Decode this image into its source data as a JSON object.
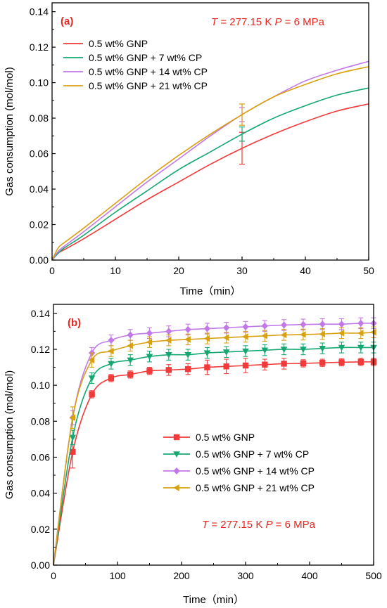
{
  "chart_data": [
    {
      "type": "line",
      "panel_label": "(a)",
      "condition": {
        "T_symbol": "T",
        "T_value": " = 277.15 K ",
        "P_symbol": "P",
        "P_value": " = 6 MPa"
      },
      "xlabel": "Time（min）",
      "ylabel": "Gas consumption (mol/mol)",
      "xlim": [
        0,
        50
      ],
      "ylim": [
        0,
        0.145
      ],
      "xticks": [
        "0",
        "10",
        "20",
        "30",
        "40",
        "50"
      ],
      "yticks": [
        "0.00",
        "0.02",
        "0.04",
        "0.06",
        "0.08",
        "0.10",
        "0.12",
        "0.14"
      ],
      "x": [
        0,
        1,
        2,
        5,
        10,
        15,
        20,
        25,
        30,
        35,
        40,
        45,
        50
      ],
      "series": [
        {
          "name": "0.5 wt% GNP",
          "color": "#f23a3a",
          "values": [
            0,
            0.004,
            0.006,
            0.012,
            0.023,
            0.034,
            0.044,
            0.054,
            0.063,
            0.071,
            0.078,
            0.084,
            0.088
          ],
          "error_bar": {
            "x": 30,
            "y": 0.063,
            "err": 0.009
          }
        },
        {
          "name": "0.5 wt% GNP + 7 wt% CP",
          "color": "#14a870",
          "values": [
            0,
            0.004,
            0.007,
            0.014,
            0.027,
            0.039,
            0.051,
            0.061,
            0.071,
            0.08,
            0.087,
            0.093,
            0.097
          ],
          "error_bar": {
            "x": 30,
            "y": 0.071,
            "err": 0.004
          }
        },
        {
          "name": "0.5 wt% GNP + 14 wt% CP",
          "color": "#c278e8",
          "values": [
            0,
            0.005,
            0.008,
            0.016,
            0.03,
            0.044,
            0.057,
            0.07,
            0.082,
            0.092,
            0.101,
            0.107,
            0.112
          ],
          "error_bar": {
            "x": 30,
            "y": 0.082,
            "err": 0.004
          }
        },
        {
          "name": "0.5 wt% GNP + 21 wt% CP",
          "color": "#d9a010",
          "values": [
            0,
            0.007,
            0.01,
            0.018,
            0.032,
            0.046,
            0.059,
            0.071,
            0.082,
            0.092,
            0.099,
            0.105,
            0.109
          ],
          "error_bar": {
            "x": 30,
            "y": 0.082,
            "err": 0.006
          }
        }
      ],
      "legend_position": "top-left"
    },
    {
      "type": "line",
      "panel_label": "(b)",
      "condition": {
        "T_symbol": "T",
        "T_value": " = 277.15 K ",
        "P_symbol": "P",
        "P_value": " = 6 MPa"
      },
      "xlabel": "Time（min）",
      "ylabel": "Gas consumption (mol/mol)",
      "xlim": [
        0,
        500
      ],
      "ylim": [
        0,
        0.145
      ],
      "xticks": [
        "0",
        "100",
        "200",
        "300",
        "400",
        "500"
      ],
      "yticks": [
        "0.00",
        "0.02",
        "0.04",
        "0.06",
        "0.08",
        "0.10",
        "0.12",
        "0.14"
      ],
      "x": [
        0,
        30,
        60,
        90,
        120,
        150,
        180,
        210,
        240,
        270,
        300,
        330,
        360,
        390,
        420,
        450,
        480,
        500
      ],
      "series": [
        {
          "name": "0.5 wt% GNP",
          "color": "#f23a3a",
          "marker": "square",
          "values": [
            0,
            0.063,
            0.095,
            0.104,
            0.106,
            0.108,
            0.1085,
            0.109,
            0.11,
            0.1105,
            0.111,
            0.1115,
            0.112,
            0.1122,
            0.1125,
            0.1128,
            0.113,
            0.113
          ],
          "errors": [
            0,
            0.009,
            0.002,
            0.002,
            0.002,
            0.002,
            0.003,
            0.003,
            0.004,
            0.004,
            0.004,
            0.003,
            0.003,
            0.002,
            0.002,
            0.002,
            0.002,
            0.002
          ]
        },
        {
          "name": "0.5 wt% GNP + 7 wt% CP",
          "color": "#14a870",
          "marker": "triangle-down",
          "values": [
            0,
            0.071,
            0.104,
            0.112,
            0.114,
            0.116,
            0.117,
            0.117,
            0.118,
            0.1185,
            0.119,
            0.1195,
            0.12,
            0.12,
            0.1205,
            0.121,
            0.121,
            0.121
          ],
          "errors": [
            0,
            0.004,
            0.003,
            0.003,
            0.003,
            0.003,
            0.003,
            0.003,
            0.003,
            0.003,
            0.003,
            0.003,
            0.003,
            0.003,
            0.003,
            0.003,
            0.003,
            0.003
          ]
        },
        {
          "name": "0.5 wt% GNP + 14 wt% CP",
          "color": "#c278e8",
          "marker": "diamond",
          "values": [
            0,
            0.082,
            0.118,
            0.125,
            0.128,
            0.129,
            0.13,
            0.131,
            0.1315,
            0.132,
            0.1325,
            0.133,
            0.1335,
            0.1338,
            0.134,
            0.134,
            0.1345,
            0.1345
          ],
          "errors": [
            0,
            0.004,
            0.003,
            0.003,
            0.003,
            0.003,
            0.003,
            0.003,
            0.003,
            0.003,
            0.003,
            0.003,
            0.003,
            0.003,
            0.003,
            0.003,
            0.003,
            0.003
          ]
        },
        {
          "name": "0.5 wt% GNP + 21 wt% CP",
          "color": "#d9a010",
          "marker": "triangle-left",
          "values": [
            0,
            0.082,
            0.114,
            0.119,
            0.122,
            0.124,
            0.125,
            0.1255,
            0.126,
            0.1265,
            0.127,
            0.1275,
            0.128,
            0.1282,
            0.1285,
            0.129,
            0.129,
            0.1295
          ],
          "errors": [
            0,
            0.006,
            0.004,
            0.003,
            0.003,
            0.003,
            0.003,
            0.003,
            0.003,
            0.003,
            0.003,
            0.003,
            0.003,
            0.003,
            0.003,
            0.003,
            0.003,
            0.003
          ]
        }
      ],
      "legend_position": "bottom-right"
    }
  ]
}
